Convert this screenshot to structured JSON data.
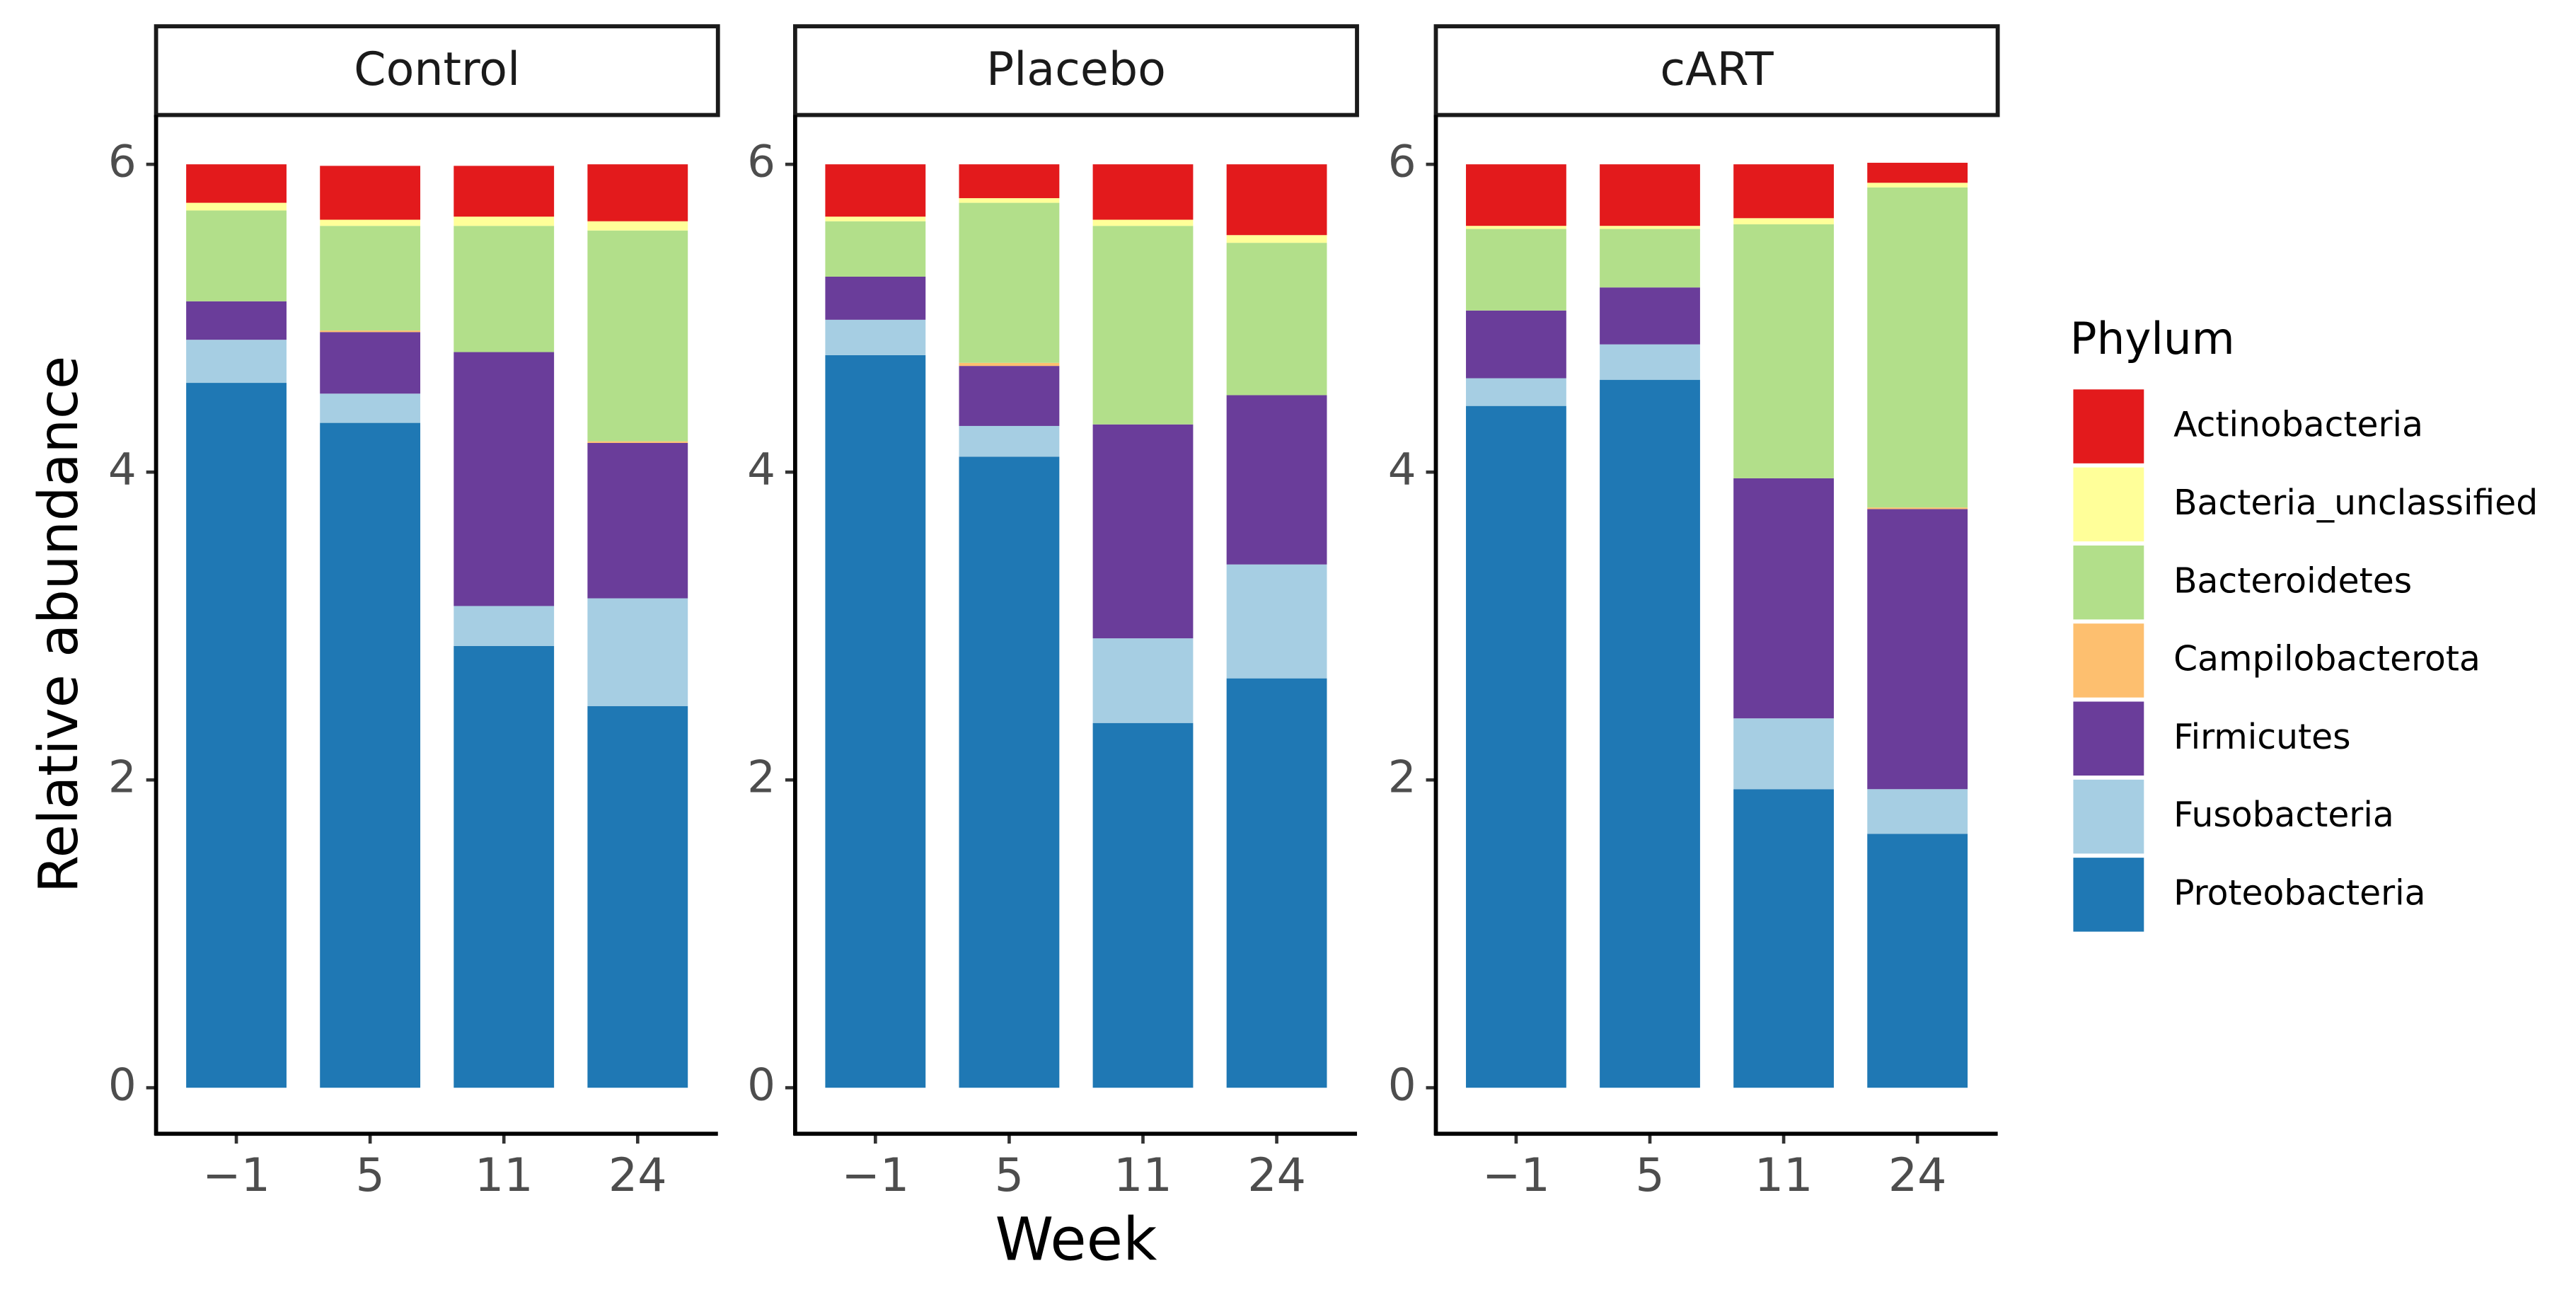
{
  "chart_data": {
    "type": "stacked_bar",
    "y_label": "Relative abundance",
    "x_label": "Week",
    "legend_title": "Phylum",
    "categories": [
      "−1",
      "5",
      "11",
      "24"
    ],
    "ylim": [
      0,
      6
    ],
    "yticks": [
      0,
      2,
      4,
      6
    ],
    "series": [
      {
        "name": "Actinobacteria",
        "color": "#e31a1c"
      },
      {
        "name": "Bacteria_unclassified",
        "color": "#ffff99"
      },
      {
        "name": "Bacteroidetes",
        "color": "#b2df8a"
      },
      {
        "name": "Campilobacterota",
        "color": "#fdbf6f"
      },
      {
        "name": "Firmicutes",
        "color": "#6a3d9a"
      },
      {
        "name": "Fusobacteria",
        "color": "#a6cee3"
      },
      {
        "name": "Proteobacteria",
        "color": "#1f78b4"
      }
    ],
    "panels": [
      {
        "title": "Control",
        "values": [
          [
            0.25,
            0.35,
            0.33,
            0.37
          ],
          [
            0.05,
            0.04,
            0.06,
            0.06
          ],
          [
            0.59,
            0.68,
            0.82,
            1.37
          ],
          [
            0,
            0.01,
            0,
            0.01
          ],
          [
            0.25,
            0.4,
            1.65,
            1.01
          ],
          [
            0.28,
            0.19,
            0.26,
            0.7
          ],
          [
            4.58,
            4.32,
            2.87,
            2.48
          ]
        ]
      },
      {
        "title": "Placebo",
        "values": [
          [
            0.34,
            0.22,
            0.36,
            0.46
          ],
          [
            0.03,
            0.03,
            0.04,
            0.05
          ],
          [
            0.36,
            1.04,
            1.29,
            0.99
          ],
          [
            0,
            0.02,
            0,
            0
          ],
          [
            0.28,
            0.39,
            1.39,
            1.1
          ],
          [
            0.23,
            0.2,
            0.55,
            0.74
          ],
          [
            4.76,
            4.1,
            2.37,
            2.66
          ]
        ]
      },
      {
        "title": "cART",
        "values": [
          [
            0.4,
            0.4,
            0.35,
            0.13
          ],
          [
            0.02,
            0.02,
            0.04,
            0.03
          ],
          [
            0.53,
            0.38,
            1.65,
            2.08
          ],
          [
            0,
            0,
            0,
            0.01
          ],
          [
            0.44,
            0.37,
            1.56,
            1.82
          ],
          [
            0.18,
            0.23,
            0.46,
            0.29
          ],
          [
            4.43,
            4.6,
            1.94,
            1.65
          ]
        ]
      }
    ]
  }
}
